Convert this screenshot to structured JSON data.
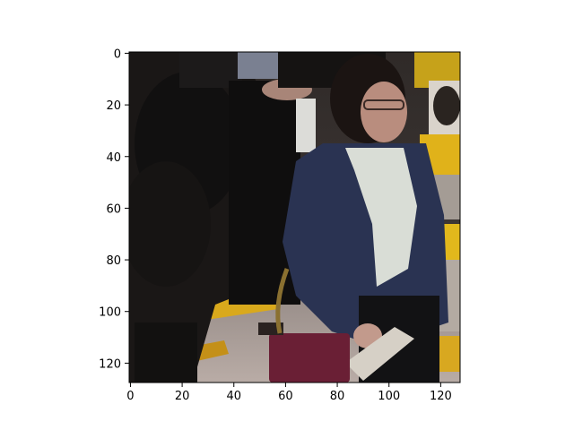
{
  "chart_data": {
    "type": "image",
    "x_ticks": [
      "0",
      "20",
      "40",
      "60",
      "80",
      "100",
      "120"
    ],
    "y_ticks": [
      "0",
      "20",
      "40",
      "60",
      "80",
      "100",
      "120"
    ],
    "xlim": [
      -0.5,
      127.5
    ],
    "ylim": [
      127.5,
      -0.5
    ],
    "image_size": [
      128,
      128
    ]
  }
}
